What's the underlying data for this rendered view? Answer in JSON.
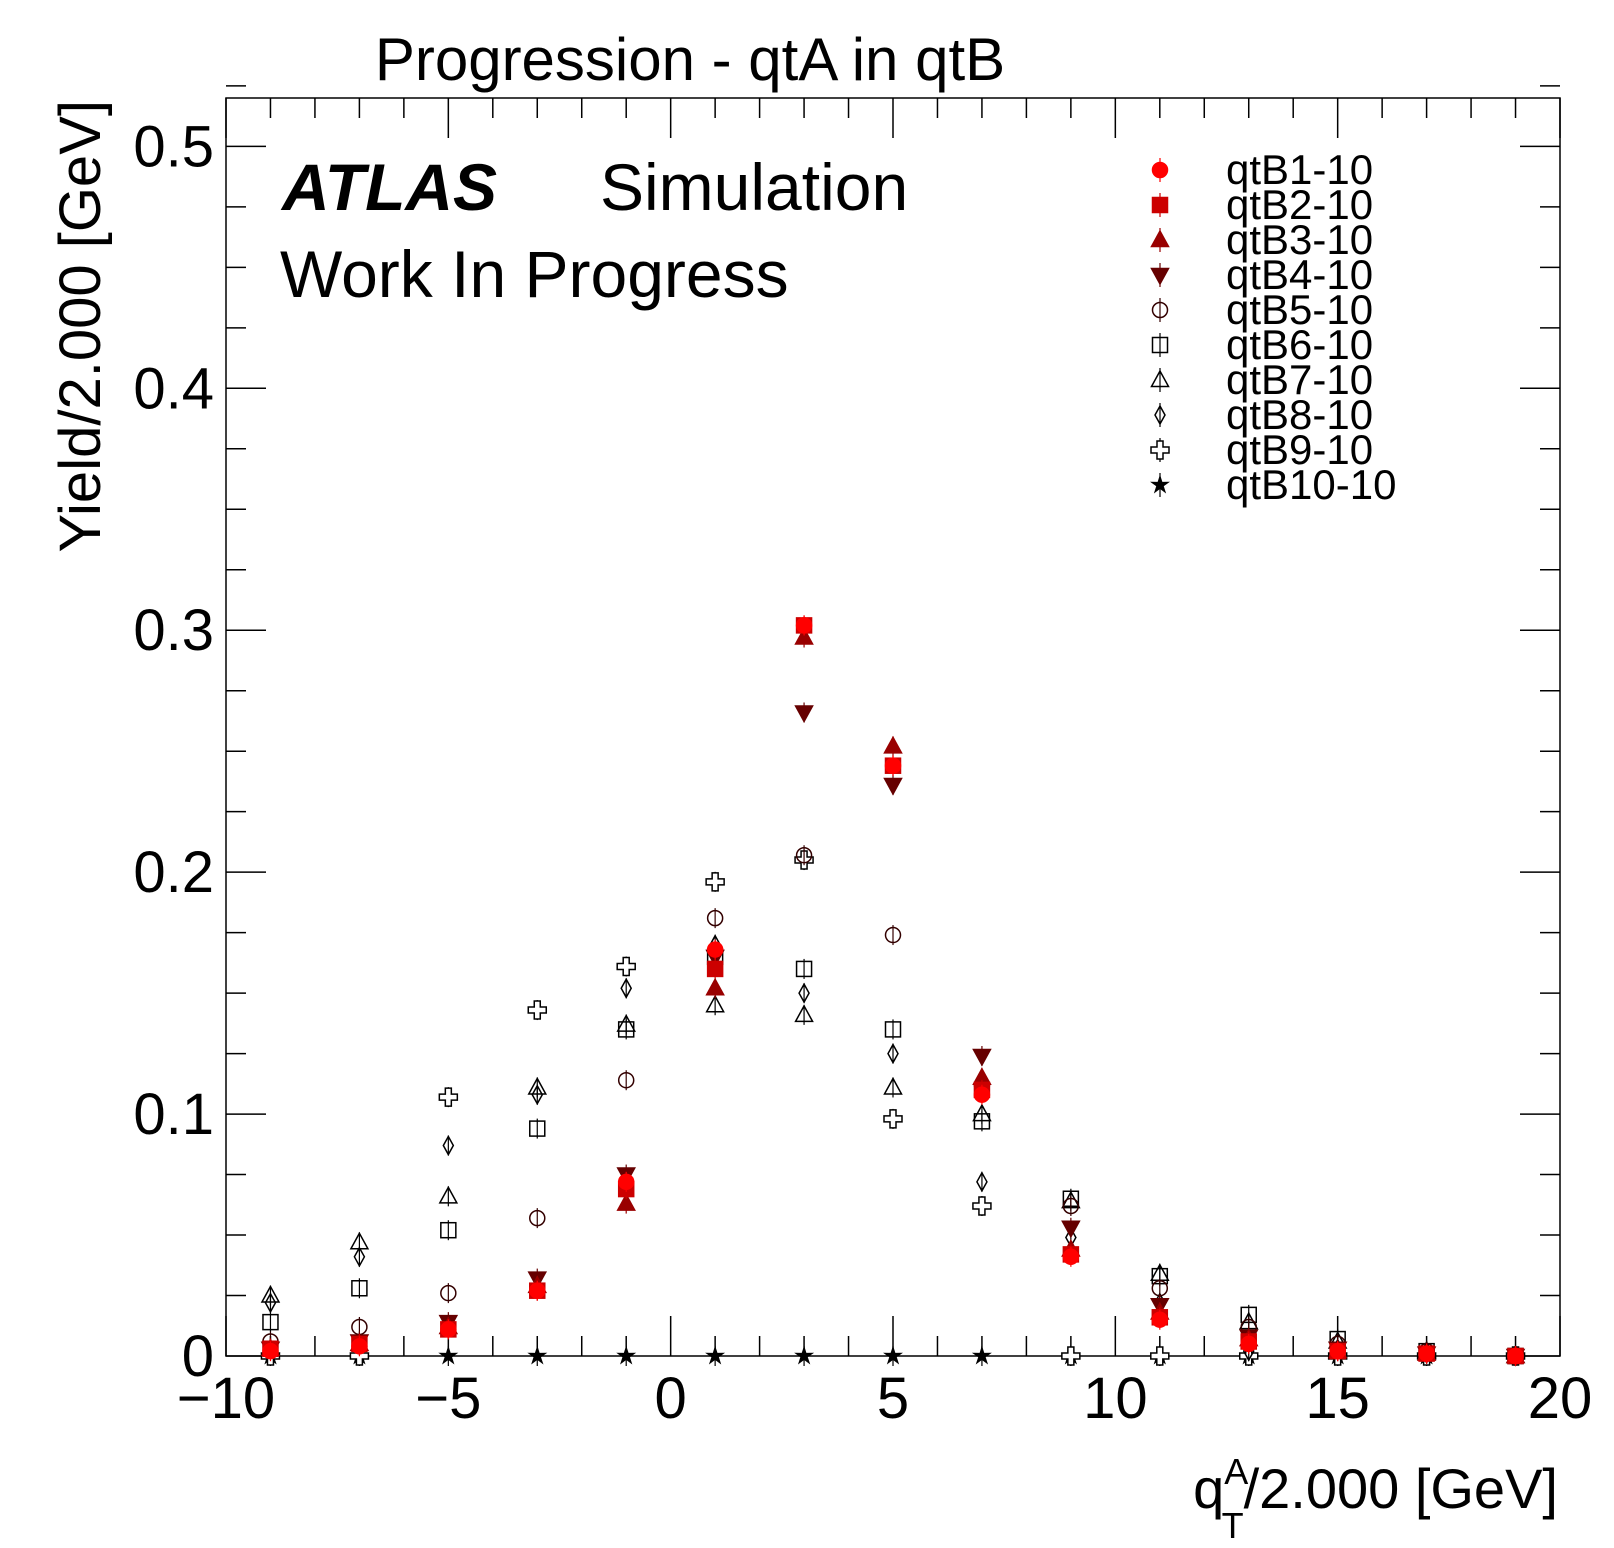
{
  "chart_data": {
    "type": "scatter",
    "title": "Progression - qtA in qtB",
    "xlabel": {
      "q": "q",
      "sup": "A",
      "sub": "T",
      "rest": "/2.000 [GeV]"
    },
    "ylabel": "Yield/2.000 [GeV]",
    "xlim": [
      -10,
      20
    ],
    "ylim": [
      0,
      0.52
    ],
    "x_ticks": [
      -10,
      -5,
      0,
      5,
      10,
      15,
      20
    ],
    "x_tick_labels": [
      "−10",
      "−5",
      "0",
      "5",
      "10",
      "15",
      "20"
    ],
    "y_ticks": [
      0,
      0.1,
      0.2,
      0.3,
      0.4,
      0.5
    ],
    "y_tick_labels": [
      "0",
      "0.1",
      "0.2",
      "0.3",
      "0.4",
      "0.5"
    ],
    "annotations": {
      "atlas": "ATLAS",
      "simulation": "Simulation",
      "status": "Work In Progress"
    },
    "legend_position": "top-right",
    "grid": false,
    "x": [
      -9,
      -7,
      -5,
      -3,
      -1,
      1,
      3,
      5,
      7,
      9,
      11,
      13,
      15,
      17,
      19
    ],
    "series": [
      {
        "name": "qtB1-10",
        "marker": "circle-filled",
        "color": "#ff0000",
        "values": [
          0.002,
          0.004,
          0.011,
          0.027,
          0.072,
          0.168,
          0.302,
          0.244,
          0.108,
          0.041,
          0.015,
          0.005,
          0.002,
          0.001,
          0.0
        ]
      },
      {
        "name": "qtB2-10",
        "marker": "square-filled",
        "color": "#cc0000",
        "values": [
          0.003,
          0.005,
          0.011,
          0.027,
          0.069,
          0.16,
          0.302,
          0.244,
          0.11,
          0.042,
          0.016,
          0.006,
          0.002,
          0.001,
          0.0
        ]
      },
      {
        "name": "qtB3-10",
        "marker": "triangle-up-filled",
        "color": "#990000",
        "values": [
          0.003,
          0.005,
          0.012,
          0.029,
          0.063,
          0.152,
          0.297,
          0.252,
          0.115,
          0.044,
          0.018,
          0.007,
          0.002,
          0.001,
          0.0
        ]
      },
      {
        "name": "qtB4-10",
        "marker": "triangle-down-filled",
        "color": "#660000",
        "values": [
          0.003,
          0.006,
          0.014,
          0.032,
          0.075,
          0.165,
          0.266,
          0.236,
          0.124,
          0.053,
          0.021,
          0.008,
          0.003,
          0.001,
          0.0
        ]
      },
      {
        "name": "qtB5-10",
        "marker": "circle-open",
        "color": "#330000",
        "values": [
          0.006,
          0.012,
          0.026,
          0.057,
          0.114,
          0.181,
          0.207,
          0.174,
          0.112,
          0.062,
          0.028,
          0.012,
          0.005,
          0.002,
          0.0
        ]
      },
      {
        "name": "qtB6-10",
        "marker": "square-open",
        "color": "#000000",
        "values": [
          0.014,
          0.028,
          0.052,
          0.094,
          0.135,
          0.165,
          0.16,
          0.135,
          0.097,
          0.065,
          0.033,
          0.017,
          0.007,
          0.002,
          0.0
        ]
      },
      {
        "name": "qtB7-10",
        "marker": "triangle-up-open",
        "color": "#000000",
        "values": [
          0.025,
          0.047,
          0.066,
          0.111,
          0.137,
          0.145,
          0.141,
          0.111,
          0.1,
          0.064,
          0.034,
          0.014,
          0.006,
          0.002,
          0.0
        ]
      },
      {
        "name": "qtB8-10",
        "marker": "diamond-open",
        "color": "#000000",
        "values": [
          0.022,
          0.041,
          0.087,
          0.108,
          0.152,
          0.17,
          0.15,
          0.125,
          0.072,
          0.049,
          0.022,
          0.002,
          0.003,
          0.001,
          0.0
        ]
      },
      {
        "name": "qtB9-10",
        "marker": "cross-open",
        "color": "#000000",
        "values": [
          0.0,
          0.0,
          0.107,
          0.143,
          0.161,
          0.196,
          0.205,
          0.098,
          0.062,
          0.0,
          0.0,
          0.0,
          0.0,
          0.0,
          0.0
        ]
      },
      {
        "name": "qtB10-10",
        "marker": "star-filled",
        "color": "#000000",
        "values": [
          0.0,
          0.0,
          0.0,
          0.0,
          0.0,
          0.0,
          0.0,
          0.0,
          0.0,
          0.0,
          0.0,
          0.0,
          0.0,
          0.0,
          0.0
        ]
      }
    ]
  }
}
